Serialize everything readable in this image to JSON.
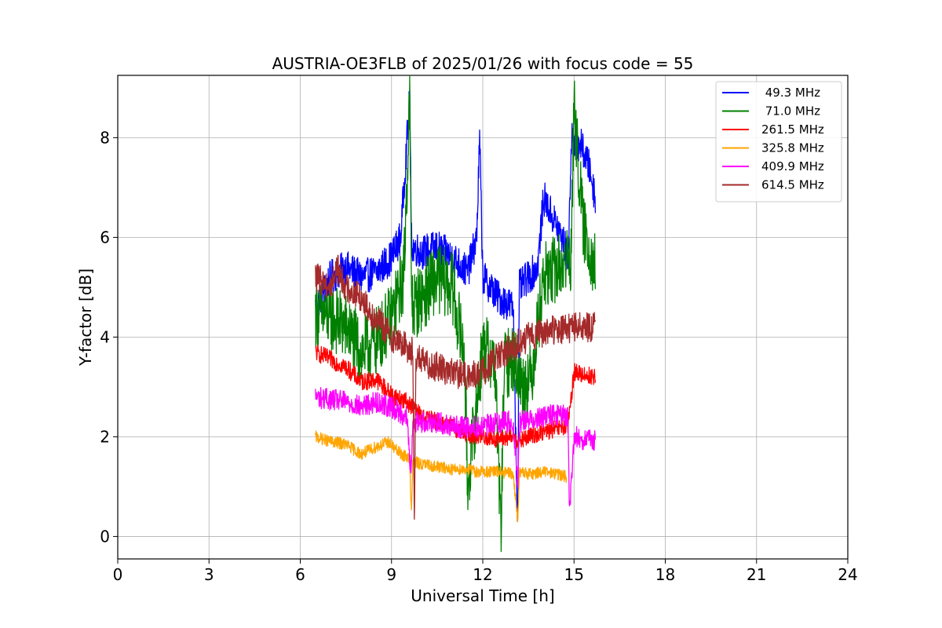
{
  "chart_data": {
    "type": "line",
    "title": "AUSTRIA-OE3FLB of 2025/01/26 with focus code = 55",
    "xlabel": "Universal Time [h]",
    "ylabel": "Y-factor [dB]",
    "xlim": [
      0,
      24
    ],
    "ylim": [
      -0.45,
      9.25
    ],
    "xticks": [
      0,
      3,
      6,
      9,
      12,
      15,
      18,
      21,
      24
    ],
    "yticks": [
      0,
      2,
      4,
      6,
      8
    ],
    "grid": true,
    "legend_position": "top-right",
    "series": [
      {
        "name": " 49.3 MHz",
        "color": "#0000ff",
        "x": [
          6.5,
          7.0,
          7.5,
          8.0,
          8.5,
          9.0,
          9.3,
          9.6,
          9.65,
          9.7,
          10.0,
          10.5,
          11.0,
          11.5,
          11.8,
          11.9,
          12.0,
          12.5,
          13.0,
          13.15,
          13.2,
          13.5,
          13.8,
          14.0,
          14.3,
          14.6,
          14.8,
          14.95,
          15.0,
          15.2,
          15.5,
          15.7
        ],
        "y": [
          4.6,
          5.2,
          5.4,
          5.2,
          5.3,
          5.6,
          6.0,
          8.8,
          6.0,
          5.8,
          5.7,
          5.8,
          5.6,
          5.3,
          6.0,
          8.0,
          5.2,
          4.8,
          4.6,
          0.1,
          5.0,
          5.2,
          5.4,
          6.8,
          6.4,
          6.0,
          5.6,
          8.4,
          7.8,
          7.9,
          7.4,
          6.8
        ],
        "band": 0.35
      },
      {
        "name": " 71.0 MHz",
        "color": "#008000",
        "x": [
          6.5,
          7.0,
          7.5,
          8.0,
          8.5,
          9.0,
          9.4,
          9.6,
          9.65,
          9.7,
          10.0,
          10.5,
          11.0,
          11.4,
          11.5,
          12.0,
          12.4,
          12.6,
          12.7,
          13.0,
          13.3,
          13.6,
          14.0,
          14.5,
          14.9,
          15.0,
          15.3,
          15.7
        ],
        "y": [
          4.5,
          4.4,
          4.2,
          3.7,
          3.9,
          4.4,
          5.2,
          8.8,
          5.0,
          4.6,
          4.8,
          5.2,
          5.0,
          3.6,
          1.0,
          3.8,
          3.5,
          0.0,
          3.4,
          3.6,
          3.0,
          3.2,
          5.2,
          5.4,
          5.6,
          8.6,
          6.2,
          5.4
        ],
        "band": 0.7
      },
      {
        "name": "261.5 MHz",
        "color": "#ff0000",
        "x": [
          6.5,
          7.0,
          7.5,
          8.0,
          8.5,
          9.0,
          9.5,
          9.7,
          10.0,
          10.5,
          11.0,
          11.5,
          12.0,
          12.5,
          13.0,
          13.2,
          13.5,
          14.0,
          14.8,
          15.0,
          15.3,
          15.7
        ],
        "y": [
          3.7,
          3.55,
          3.4,
          3.1,
          3.15,
          2.85,
          2.7,
          2.6,
          2.4,
          2.3,
          2.2,
          2.05,
          2.0,
          1.95,
          2.0,
          1.9,
          2.0,
          2.1,
          2.2,
          3.3,
          3.25,
          3.2
        ],
        "band": 0.18
      },
      {
        "name": "325.8 MHz",
        "color": "#ffa500",
        "x": [
          6.5,
          7.0,
          7.5,
          8.0,
          8.5,
          8.9,
          9.2,
          9.6,
          9.65,
          9.7,
          10.0,
          10.5,
          11.0,
          11.5,
          11.8,
          11.85,
          12.0,
          12.5,
          13.0,
          13.15,
          13.2,
          13.5,
          14.0,
          14.5,
          14.75
        ],
        "y": [
          2.0,
          1.9,
          1.85,
          1.65,
          1.8,
          1.9,
          1.7,
          1.55,
          0.5,
          1.5,
          1.45,
          1.4,
          1.35,
          1.35,
          1.3,
          1.3,
          1.3,
          1.3,
          1.25,
          0.3,
          1.3,
          1.25,
          1.3,
          1.25,
          1.2
        ],
        "band": 0.12
      },
      {
        "name": "409.9 MHz",
        "color": "#ff00ff",
        "x": [
          6.5,
          7.0,
          7.5,
          8.0,
          8.5,
          9.0,
          9.5,
          9.65,
          9.7,
          10.0,
          10.5,
          11.0,
          11.5,
          12.0,
          12.5,
          13.0,
          13.15,
          13.2,
          13.5,
          14.0,
          14.5,
          14.8,
          14.85,
          15.0,
          15.3,
          15.7
        ],
        "y": [
          2.8,
          2.75,
          2.7,
          2.6,
          2.7,
          2.6,
          2.4,
          1.2,
          2.3,
          2.3,
          2.3,
          2.2,
          2.2,
          2.2,
          2.3,
          2.3,
          1.0,
          2.3,
          2.35,
          2.4,
          2.45,
          2.4,
          0.4,
          2.0,
          1.95,
          1.9
        ],
        "band": 0.22
      },
      {
        "name": "614.5 MHz",
        "color": "#a52a2a",
        "x": [
          6.5,
          6.8,
          7.0,
          7.2,
          7.5,
          8.0,
          8.3,
          8.6,
          9.0,
          9.5,
          9.7,
          9.75,
          9.8,
          10.0,
          10.5,
          11.0,
          11.5,
          12.0,
          12.5,
          13.0,
          13.5,
          14.0,
          14.5,
          15.0,
          15.5,
          15.7
        ],
        "y": [
          5.2,
          5.1,
          5.0,
          5.4,
          5.0,
          4.8,
          4.5,
          4.3,
          4.0,
          3.8,
          3.7,
          0.1,
          3.6,
          3.5,
          3.4,
          3.3,
          3.2,
          3.3,
          3.6,
          3.8,
          4.0,
          4.1,
          4.15,
          4.2,
          4.2,
          4.2
        ],
        "band": 0.3
      }
    ]
  }
}
